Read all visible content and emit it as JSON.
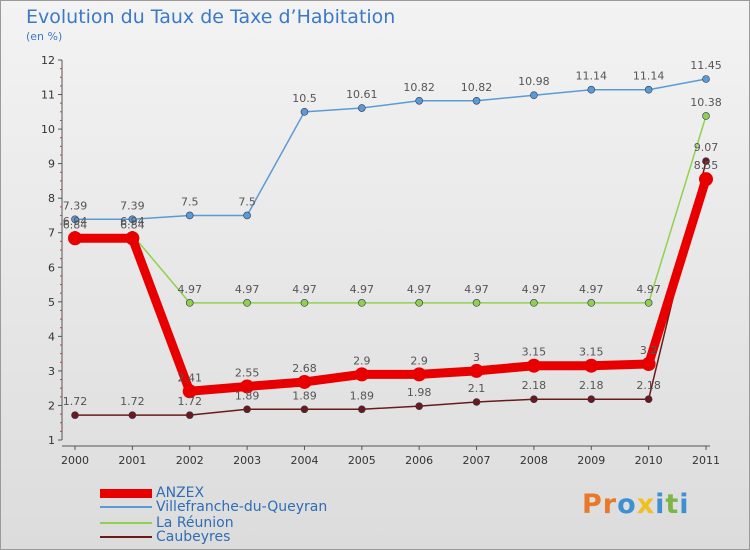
{
  "title": "Evolution du Taux de Taxe d’Habitation",
  "subtitle": "(en %)",
  "logo": {
    "text": "Proxiti",
    "colors": [
      "#e8792a",
      "#e8792a",
      "#3f90d0",
      "#f0c020",
      "#3f90d0",
      "#7ab648",
      "#3f90d0"
    ]
  },
  "chart_data": {
    "type": "line",
    "x": [
      "2000",
      "2001",
      "2002",
      "2003",
      "2004",
      "2005",
      "2006",
      "2007",
      "2008",
      "2009",
      "2010",
      "2011"
    ],
    "ylim": [
      1,
      12
    ],
    "yticks": [
      "1",
      "2",
      "3",
      "4",
      "5",
      "6",
      "7",
      "8",
      "9",
      "10",
      "11",
      "12"
    ],
    "grid": false,
    "legend_position": "bottom-left",
    "series": [
      {
        "name": "ANZEX",
        "color": "#e80000",
        "values": [
          6.84,
          6.84,
          2.41,
          2.55,
          2.68,
          2.9,
          2.9,
          3.0,
          3.15,
          3.15,
          3.2,
          8.55
        ],
        "labels": [
          "6.84",
          "6.84",
          "2.41",
          "2.55",
          "2.68",
          "2.9",
          "2.9",
          "3",
          "3.15",
          "3.15",
          "3.2",
          "8.55"
        ]
      },
      {
        "name": "Villefranche-du-Queyran",
        "color": "#5b9bd5",
        "values": [
          7.39,
          7.39,
          7.5,
          7.5,
          10.5,
          10.61,
          10.82,
          10.82,
          10.98,
          11.14,
          11.14,
          11.45
        ],
        "labels": [
          "7.39",
          "7.39",
          "7.5",
          "7.5",
          "10.5",
          "10.61",
          "10.82",
          "10.82",
          "10.98",
          "11.14",
          "11.14",
          "11.45"
        ]
      },
      {
        "name": "La Réunion",
        "color": "#8fd14f",
        "values": [
          6.94,
          6.94,
          4.97,
          4.97,
          4.97,
          4.97,
          4.97,
          4.97,
          4.97,
          4.97,
          4.97,
          10.38
        ],
        "labels": [
          "6.94",
          "6.94",
          "4.97",
          "4.97",
          "4.97",
          "4.97",
          "4.97",
          "4.97",
          "4.97",
          "4.97",
          "4.97",
          "10.38"
        ]
      },
      {
        "name": "Caubeyres",
        "color": "#6b1a1a",
        "values": [
          1.72,
          1.72,
          1.72,
          1.89,
          1.89,
          1.89,
          1.98,
          2.1,
          2.18,
          2.18,
          2.18,
          9.07
        ],
        "labels": [
          "1.72",
          "1.72",
          "1.72",
          "1.89",
          "1.89",
          "1.89",
          "1.98",
          "2.1",
          "2.18",
          "2.18",
          "2.18",
          "9.07"
        ]
      }
    ]
  }
}
